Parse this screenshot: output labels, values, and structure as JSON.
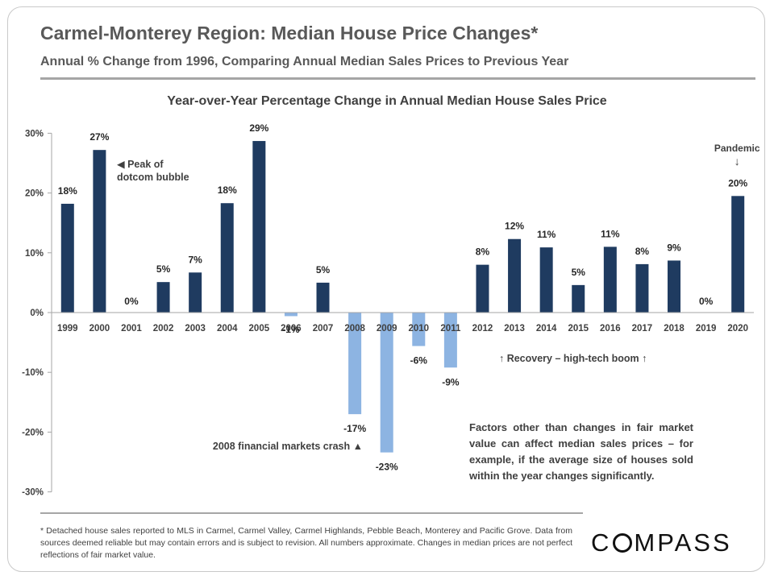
{
  "header": {
    "title": "Carmel-Monterey Region: Median House Price Changes*",
    "subtitle": "Annual % Change from 1996, Comparing Annual Median Sales Prices to Previous Year"
  },
  "chart_data": {
    "type": "bar",
    "title": "Year-over-Year Percentage Change in Annual Median House Sales Price",
    "xlabel": "",
    "ylabel": "",
    "ylim": [
      -30,
      30
    ],
    "yticks": [
      30,
      20,
      10,
      0,
      -10,
      -20,
      -30
    ],
    "ytick_labels": [
      "30%",
      "20%",
      "10%",
      "0%",
      "-10%",
      "-20%",
      "-30%"
    ],
    "grid": false,
    "categories": [
      "1999",
      "2000",
      "2001",
      "2002",
      "2003",
      "2004",
      "2005",
      "2006",
      "2007",
      "2008",
      "2009",
      "2010",
      "2011",
      "2012",
      "2013",
      "2014",
      "2015",
      "2016",
      "2017",
      "2018",
      "2019",
      "2020"
    ],
    "values": [
      18.2,
      27.2,
      0,
      5.1,
      6.7,
      18.3,
      28.7,
      -0.6,
      5.0,
      -17.0,
      -23.4,
      -5.6,
      -9.2,
      8.0,
      12.3,
      10.9,
      4.6,
      11.0,
      8.1,
      8.7,
      0,
      19.5
    ],
    "data_labels": [
      "18%",
      "27%",
      "0%",
      "5%",
      "7%",
      "18%",
      "29%",
      "-1%",
      "5%",
      "-17%",
      "-23%",
      "-6%",
      "-9%",
      "8%",
      "12%",
      "11%",
      "5%",
      "11%",
      "8%",
      "9%",
      "0%",
      "20%"
    ],
    "colors": {
      "positive": "#1f3b60",
      "negative": "#8db4e2"
    },
    "annotations": [
      {
        "lines": [
          "◀ Peak of",
          "dotcom bubble"
        ]
      },
      {
        "lines": [
          "2008 financial markets crash ▲"
        ]
      },
      {
        "lines": [
          "↑    Recovery – high-tech boom    ↑"
        ]
      },
      {
        "lines": [
          "Pandemic",
          "↓"
        ]
      }
    ]
  },
  "note": "Factors other than changes in fair market value can affect median sales prices – for example, if the average size of houses sold within the year changes significantly.",
  "footnote": "* Detached house sales reported to MLS in Carmel, Carmel Valley, Carmel Highlands, Pebble Beach, Monterey and Pacific Grove. Data from sources deemed reliable but may contain errors and is subject to revision. All numbers approximate. Changes in median prices are not perfect reflections of fair market value.",
  "logo": {
    "text_before": "C",
    "text_after": "MPASS",
    "full": "COMPASS"
  }
}
